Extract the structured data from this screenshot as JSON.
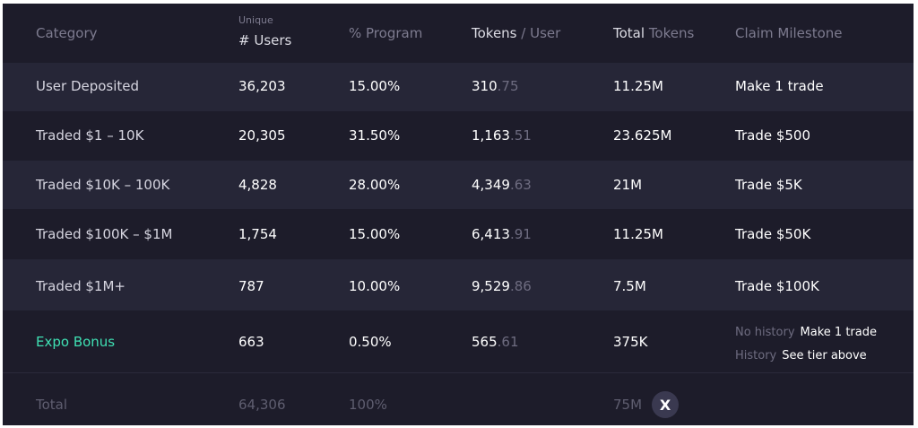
{
  "header": {
    "category": "Category",
    "users_sub": "Unique",
    "users": "# Users",
    "pct": "% Program",
    "tokens_strong": "Tokens",
    "tokens_rest": " / User",
    "total_strong": "Total",
    "total_rest": " Tokens",
    "claim": "Claim Milestone"
  },
  "rows": [
    {
      "category": "User Deposited",
      "users": "36,203",
      "pct": "15.00%",
      "tok_int": "310",
      "tok_dec": ".75",
      "total": "11.25M",
      "claim": "Make 1 trade"
    },
    {
      "category": "Traded $1 – 10K",
      "users": "20,305",
      "pct": "31.50%",
      "tok_int": "1,163",
      "tok_dec": ".51",
      "total": "23.625M",
      "claim": "Trade $500"
    },
    {
      "category": "Traded $10K – 100K",
      "users": "4,828",
      "pct": "28.00%",
      "tok_int": "4,349",
      "tok_dec": ".63",
      "total": "21M",
      "claim": "Trade $5K"
    },
    {
      "category": "Traded $100K – $1M",
      "users": "1,754",
      "pct": "15.00%",
      "tok_int": "6,413",
      "tok_dec": ".91",
      "total": "11.25M",
      "claim": "Trade $50K"
    },
    {
      "category": "Traded $1M+",
      "users": "787",
      "pct": "10.00%",
      "tok_int": "9,529",
      "tok_dec": ".86",
      "total": "7.5M",
      "claim": "Trade $100K"
    }
  ],
  "bonus": {
    "category": "Expo Bonus",
    "users": "663",
    "pct": "0.50%",
    "tok_int": "565",
    "tok_dec": ".61",
    "total": "375K",
    "claim_lines": [
      {
        "label": "No history",
        "value": "Make 1 trade"
      },
      {
        "label": "History",
        "value": "See tier above"
      }
    ]
  },
  "total": {
    "category": "Total",
    "users": "64,306",
    "pct": "100%",
    "total": "75M",
    "badge": "X"
  },
  "colors": {
    "background": "#1d1c2a",
    "row_shade": "#262637",
    "accent": "#3fe0b3"
  }
}
